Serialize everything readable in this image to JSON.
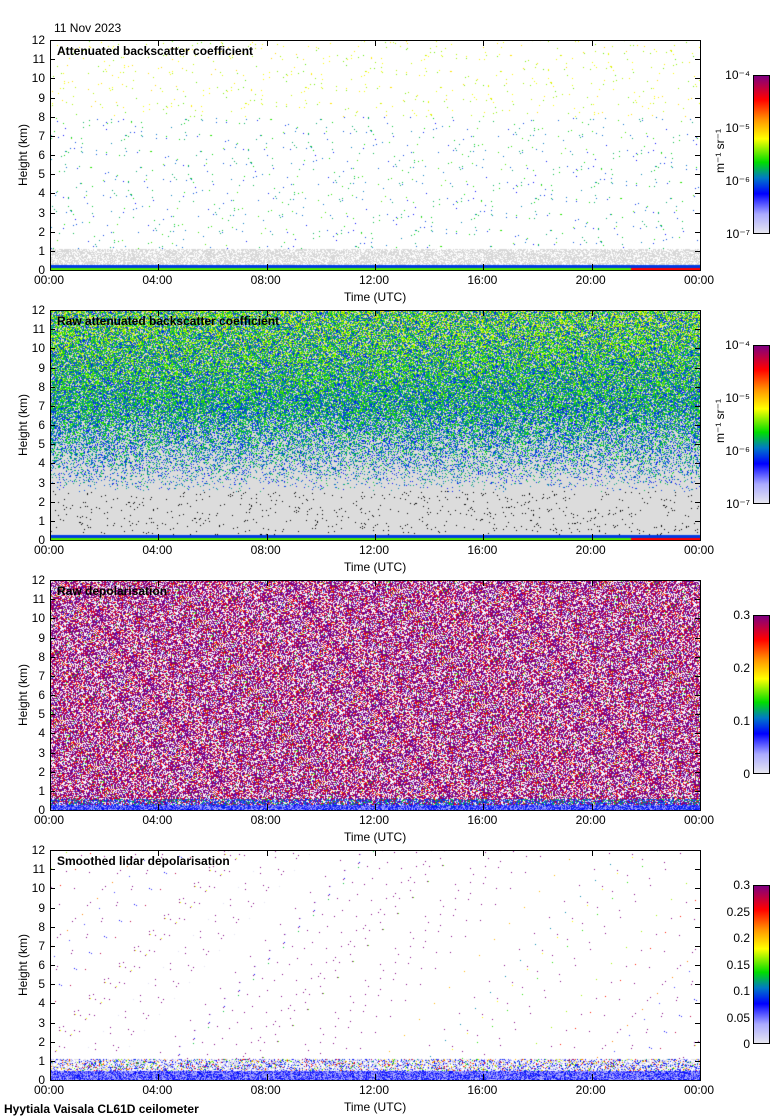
{
  "date_label": "11 Nov 2023",
  "footer": "Hyytiala Vaisala CL61D ceilometer",
  "chart_data": [
    {
      "type": "heatmap",
      "title": "Attenuated backscatter coefficient",
      "xlabel": "Time (UTC)",
      "ylabel": "Height (km)",
      "ylim": [
        0,
        12
      ],
      "yticks": [
        "0",
        "1",
        "2",
        "3",
        "4",
        "5",
        "6",
        "7",
        "8",
        "9",
        "10",
        "11",
        "12"
      ],
      "xticks": [
        "00:00",
        "04:00",
        "08:00",
        "12:00",
        "16:00",
        "20:00",
        "00:00"
      ],
      "colorbar": {
        "label": "m⁻¹ sr⁻¹",
        "scale": "log",
        "range": [
          1e-07,
          0.0001
        ],
        "ticks": [
          "10⁻⁴",
          "10⁻⁵",
          "10⁻⁶",
          "10⁻⁷"
        ]
      },
      "style": "sparse-backscatter"
    },
    {
      "type": "heatmap",
      "title": "Raw attenuated backscatter coefficient",
      "xlabel": "Time (UTC)",
      "ylabel": "Height (km)",
      "ylim": [
        0,
        12
      ],
      "yticks": [
        "0",
        "1",
        "2",
        "3",
        "4",
        "5",
        "6",
        "7",
        "8",
        "9",
        "10",
        "11",
        "12"
      ],
      "xticks": [
        "00:00",
        "04:00",
        "08:00",
        "12:00",
        "16:00",
        "20:00",
        "00:00"
      ],
      "colorbar": {
        "label": "m⁻¹ sr⁻¹",
        "scale": "log",
        "range": [
          1e-07,
          0.0001
        ],
        "ticks": [
          "10⁻⁴",
          "10⁻⁵",
          "10⁻⁶",
          "10⁻⁷"
        ]
      },
      "style": "raw-backscatter"
    },
    {
      "type": "heatmap",
      "title": "Raw depolarisation",
      "xlabel": "Time (UTC)",
      "ylabel": "Height (km)",
      "ylim": [
        0,
        12
      ],
      "yticks": [
        "0",
        "1",
        "2",
        "3",
        "4",
        "5",
        "6",
        "7",
        "8",
        "9",
        "10",
        "11",
        "12"
      ],
      "xticks": [
        "00:00",
        "04:00",
        "08:00",
        "12:00",
        "16:00",
        "20:00",
        "00:00"
      ],
      "colorbar": {
        "label": "",
        "scale": "linear",
        "range": [
          0,
          0.3
        ],
        "ticks": [
          "0.3",
          "0.2",
          "0.1",
          "0"
        ]
      },
      "style": "raw-depol"
    },
    {
      "type": "heatmap",
      "title": "Smoothed lidar depolarisation",
      "xlabel": "Time (UTC)",
      "ylabel": "Height (km)",
      "ylim": [
        0,
        12
      ],
      "yticks": [
        "0",
        "1",
        "2",
        "3",
        "4",
        "5",
        "6",
        "7",
        "8",
        "9",
        "10",
        "11",
        "12"
      ],
      "xticks": [
        "00:00",
        "04:00",
        "08:00",
        "12:00",
        "16:00",
        "20:00",
        "00:00"
      ],
      "colorbar": {
        "label": "",
        "scale": "linear",
        "range": [
          0,
          0.3
        ],
        "ticks": [
          "0.3",
          "0.25",
          "0.2",
          "0.15",
          "0.1",
          "0.05",
          "0"
        ]
      },
      "style": "smooth-depol"
    }
  ]
}
